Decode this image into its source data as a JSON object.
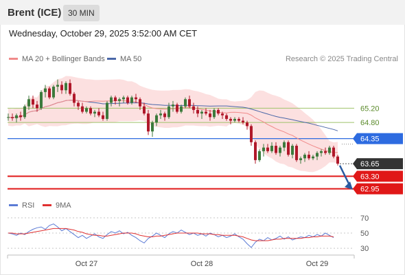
{
  "header": {
    "instrument": "Brent (ICE)",
    "interval": "30 MIN",
    "datetime": "Wednesday, October 29, 2025 3:52:00 AM CET",
    "credit": "Research © 2025 Trading Central"
  },
  "colors": {
    "up": "#3c7a3c",
    "down": "#b0182a",
    "ma20": "#f08a8a",
    "band": "#fbd6d6",
    "ma50": "#4a67a8",
    "resistance": "#9ec26a",
    "pivot": "#2d6be0",
    "support": "#e01818",
    "rsi": "#5b7bd5",
    "rsi_ma": "#e03030",
    "arrow": "#2a5aa0"
  },
  "chart_data": [
    {
      "type": "candlestick",
      "legend": [
        {
          "name": "MA 20 + Bollinger Bands",
          "color": "#f08a8a"
        },
        {
          "name": "MA 50",
          "color": "#4a67a8"
        }
      ],
      "ylim": [
        62.75,
        66.3
      ],
      "x_ticks": [
        {
          "label": "Oct 27",
          "index": 19
        },
        {
          "label": "Oct 28",
          "index": 47
        },
        {
          "label": "Oct 29",
          "index": 75
        }
      ],
      "levels": [
        {
          "price": 65.2,
          "label": "65.20",
          "kind": "resistance"
        },
        {
          "price": 64.8,
          "label": "64.80",
          "kind": "resistance"
        },
        {
          "price": 64.35,
          "label": "64.35",
          "kind": "pivot"
        },
        {
          "price": 63.65,
          "label": "63.65",
          "kind": "last"
        },
        {
          "price": 63.3,
          "label": "63.30",
          "kind": "support"
        },
        {
          "price": 62.95,
          "label": "62.95",
          "kind": "support"
        }
      ],
      "candles": [
        [
          64.95,
          65.05,
          64.85,
          64.95
        ],
        [
          64.95,
          65.05,
          64.85,
          64.92
        ],
        [
          64.92,
          65.05,
          64.8,
          65.0
        ],
        [
          65.0,
          65.1,
          64.85,
          64.95
        ],
        [
          64.95,
          65.3,
          64.9,
          65.25
        ],
        [
          65.25,
          65.55,
          65.15,
          65.45
        ],
        [
          65.45,
          65.55,
          65.2,
          65.3
        ],
        [
          65.3,
          65.4,
          65.1,
          65.2
        ],
        [
          65.2,
          65.7,
          65.15,
          65.65
        ],
        [
          65.65,
          65.85,
          65.5,
          65.75
        ],
        [
          65.75,
          65.8,
          65.45,
          65.5
        ],
        [
          65.5,
          65.85,
          65.45,
          65.8
        ],
        [
          65.8,
          66.0,
          65.65,
          65.85
        ],
        [
          65.85,
          65.95,
          65.6,
          65.7
        ],
        [
          65.7,
          65.95,
          65.6,
          65.9
        ],
        [
          65.9,
          66.0,
          65.55,
          65.6
        ],
        [
          65.6,
          65.65,
          65.25,
          65.35
        ],
        [
          65.35,
          65.4,
          65.15,
          65.25
        ],
        [
          65.25,
          65.35,
          65.05,
          65.1
        ],
        [
          65.1,
          65.25,
          65.05,
          65.2
        ],
        [
          65.2,
          65.25,
          65.0,
          65.05
        ],
        [
          65.05,
          65.15,
          64.95,
          65.1
        ],
        [
          65.1,
          65.2,
          64.95,
          65.0
        ],
        [
          65.0,
          65.1,
          64.85,
          64.9
        ],
        [
          64.9,
          65.4,
          64.85,
          65.35
        ],
        [
          65.35,
          65.55,
          65.25,
          65.5
        ],
        [
          65.5,
          65.55,
          65.3,
          65.4
        ],
        [
          65.4,
          65.5,
          65.25,
          65.45
        ],
        [
          65.45,
          65.55,
          65.35,
          65.5
        ],
        [
          65.5,
          65.55,
          65.3,
          65.35
        ],
        [
          65.35,
          65.55,
          65.3,
          65.5
        ],
        [
          65.5,
          65.6,
          65.35,
          65.45
        ],
        [
          65.45,
          65.5,
          65.15,
          65.25
        ],
        [
          65.25,
          65.35,
          65.0,
          65.05
        ],
        [
          65.05,
          65.15,
          64.45,
          64.55
        ],
        [
          64.55,
          64.85,
          64.4,
          64.8
        ],
        [
          64.8,
          65.05,
          64.7,
          65.0
        ],
        [
          65.0,
          65.15,
          64.9,
          65.05
        ],
        [
          65.05,
          65.1,
          64.85,
          64.95
        ],
        [
          64.95,
          65.35,
          64.9,
          65.25
        ],
        [
          65.25,
          65.4,
          65.1,
          65.3
        ],
        [
          65.3,
          65.35,
          65.05,
          65.1
        ],
        [
          65.1,
          65.3,
          65.05,
          65.25
        ],
        [
          65.25,
          65.5,
          65.2,
          65.45
        ],
        [
          65.45,
          65.55,
          65.2,
          65.25
        ],
        [
          65.25,
          65.35,
          65.05,
          65.15
        ],
        [
          65.15,
          65.25,
          64.95,
          65.05
        ],
        [
          65.05,
          65.15,
          64.9,
          65.1
        ],
        [
          65.1,
          65.2,
          65.0,
          65.05
        ],
        [
          65.05,
          65.15,
          64.85,
          64.95
        ],
        [
          64.95,
          65.2,
          64.9,
          65.15
        ],
        [
          65.15,
          65.2,
          65.0,
          65.05
        ],
        [
          65.05,
          65.1,
          64.9,
          65.0
        ],
        [
          65.0,
          65.05,
          64.85,
          64.9
        ],
        [
          64.9,
          64.95,
          64.75,
          64.85
        ],
        [
          64.85,
          64.95,
          64.8,
          64.9
        ],
        [
          64.9,
          64.95,
          64.8,
          64.85
        ],
        [
          64.85,
          64.95,
          64.75,
          64.8
        ],
        [
          64.8,
          64.85,
          64.6,
          64.7
        ],
        [
          64.7,
          64.75,
          64.15,
          64.25
        ],
        [
          64.25,
          64.3,
          63.65,
          63.75
        ],
        [
          63.75,
          64.05,
          63.7,
          64.0
        ],
        [
          64.0,
          64.2,
          63.85,
          64.1
        ],
        [
          64.1,
          64.2,
          63.95,
          64.0
        ],
        [
          64.0,
          64.25,
          63.95,
          64.15
        ],
        [
          64.15,
          64.25,
          63.9,
          63.95
        ],
        [
          63.95,
          64.15,
          63.85,
          64.1
        ],
        [
          64.1,
          64.3,
          64.0,
          64.25
        ],
        [
          64.25,
          64.3,
          63.85,
          63.9
        ],
        [
          63.9,
          64.2,
          63.8,
          64.15
        ],
        [
          64.15,
          64.2,
          63.7,
          63.75
        ],
        [
          63.75,
          63.85,
          63.65,
          63.8
        ],
        [
          63.8,
          63.95,
          63.7,
          63.9
        ],
        [
          63.9,
          64.0,
          63.75,
          63.8
        ],
        [
          63.8,
          63.9,
          63.75,
          63.85
        ],
        [
          63.85,
          64.0,
          63.75,
          63.95
        ],
        [
          63.95,
          64.05,
          63.85,
          64.0
        ],
        [
          64.0,
          64.1,
          63.9,
          63.95
        ],
        [
          63.95,
          64.15,
          63.9,
          64.1
        ],
        [
          64.1,
          64.15,
          63.8,
          63.85
        ],
        [
          63.85,
          63.9,
          63.6,
          63.65
        ]
      ]
    },
    {
      "type": "line",
      "legend": [
        {
          "name": "RSI",
          "color": "#5b7bd5"
        },
        {
          "name": "9MA",
          "color": "#e03030"
        }
      ],
      "ylim": [
        22,
        78
      ],
      "y_ticks": [
        70,
        50,
        30
      ],
      "series": [
        {
          "name": "RSI",
          "values": [
            50,
            49,
            47,
            50,
            48,
            52,
            55,
            57,
            58,
            55,
            60,
            62,
            58,
            53,
            56,
            52,
            48,
            44,
            47,
            43,
            46,
            49,
            45,
            43,
            48,
            52,
            50,
            53,
            49,
            51,
            47,
            44,
            40,
            37,
            43,
            46,
            50,
            47,
            44,
            49,
            52,
            50,
            54,
            51,
            48,
            50,
            47,
            49,
            46,
            50,
            48,
            45,
            47,
            44,
            46,
            49,
            45,
            42,
            36,
            31,
            38,
            42,
            40,
            44,
            41,
            43,
            46,
            42,
            45,
            41,
            43,
            45,
            44,
            47,
            45,
            48,
            46,
            50,
            47,
            44
          ]
        },
        {
          "name": "9MA",
          "values": [
            50,
            50,
            49,
            49,
            49,
            50,
            51,
            52,
            53,
            54,
            55,
            56,
            56,
            56,
            56,
            55,
            54,
            52,
            51,
            49,
            48,
            47,
            47,
            46,
            46,
            47,
            48,
            49,
            50,
            50,
            50,
            49,
            47,
            46,
            45,
            45,
            46,
            46,
            47,
            48,
            49,
            50,
            50,
            50,
            50,
            50,
            50,
            49,
            49,
            49,
            48,
            48,
            47,
            47,
            47,
            47,
            46,
            45,
            43,
            41,
            40,
            40,
            40,
            40,
            41,
            42,
            42,
            43,
            43,
            43,
            43,
            43,
            44,
            44,
            45,
            45,
            46,
            46,
            46,
            45
          ]
        }
      ]
    }
  ]
}
